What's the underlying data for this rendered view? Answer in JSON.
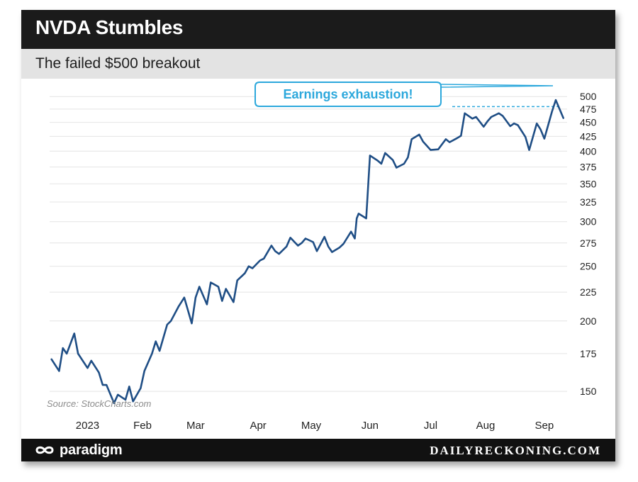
{
  "header": {
    "title": "NVDA Stumbles",
    "subtitle": "The failed $500 breakout"
  },
  "annotation": {
    "label": "Earnings exhaustion!",
    "color": "#2ca8dc"
  },
  "source": "Source: StockCharts.com",
  "footer": {
    "logo_text": "paradigm",
    "site": "DAILYRECKONING.COM"
  },
  "colors": {
    "line": "#1f4e85",
    "grid": "#e4e4e4",
    "accent": "#2ca8dc"
  },
  "chart_data": {
    "type": "line",
    "title": "NVDA Stumbles",
    "subtitle": "The failed $500 breakout",
    "y_scale": "log",
    "ylim": [
      140,
      515
    ],
    "y_ticks": [
      150,
      175,
      200,
      225,
      250,
      275,
      300,
      325,
      350,
      375,
      400,
      425,
      450,
      475,
      500
    ],
    "x_tick_labels": [
      "2023",
      "Feb",
      "Mar",
      "Apr",
      "May",
      "Jun",
      "Jul",
      "Aug",
      "Sep"
    ],
    "x_ticks": [
      "2023-01-03",
      "2023-02-01",
      "2023-03-01",
      "2023-04-03",
      "2023-05-01",
      "2023-06-01",
      "2023-07-03",
      "2023-08-01",
      "2023-09-01"
    ],
    "xlim": [
      "2022-12-14",
      "2023-09-13"
    ],
    "grid": "horizontal",
    "reference_level": 480,
    "series": [
      {
        "x": [
          "2022-12-15",
          "2022-12-19",
          "2022-12-21",
          "2022-12-23",
          "2022-12-27",
          "2022-12-29",
          "2023-01-03",
          "2023-01-05",
          "2023-01-09",
          "2023-01-11",
          "2023-01-13",
          "2023-01-17",
          "2023-01-19",
          "2023-01-23",
          "2023-01-25",
          "2023-01-27",
          "2023-01-31",
          "2023-02-02",
          "2023-02-06",
          "2023-02-08",
          "2023-02-10",
          "2023-02-14",
          "2023-02-16",
          "2023-02-20",
          "2023-02-23",
          "2023-02-27",
          "2023-03-01",
          "2023-03-03",
          "2023-03-07",
          "2023-03-09",
          "2023-03-13",
          "2023-03-15",
          "2023-03-17",
          "2023-03-21",
          "2023-03-23",
          "2023-03-27",
          "2023-03-29",
          "2023-03-31",
          "2023-04-04",
          "2023-04-06",
          "2023-04-10",
          "2023-04-12",
          "2023-04-14",
          "2023-04-18",
          "2023-04-20",
          "2023-04-24",
          "2023-04-26",
          "2023-04-28",
          "2023-05-02",
          "2023-05-04",
          "2023-05-08",
          "2023-05-10",
          "2023-05-12",
          "2023-05-16",
          "2023-05-18",
          "2023-05-22",
          "2023-05-24",
          "2023-05-25",
          "2023-05-26",
          "2023-05-30",
          "2023-06-01",
          "2023-06-05",
          "2023-06-07",
          "2023-06-09",
          "2023-06-13",
          "2023-06-15",
          "2023-06-19",
          "2023-06-21",
          "2023-06-23",
          "2023-06-27",
          "2023-06-29",
          "2023-07-03",
          "2023-07-07",
          "2023-07-11",
          "2023-07-13",
          "2023-07-17",
          "2023-07-19",
          "2023-07-21",
          "2023-07-25",
          "2023-07-27",
          "2023-07-31",
          "2023-08-02",
          "2023-08-04",
          "2023-08-08",
          "2023-08-10",
          "2023-08-14",
          "2023-08-16",
          "2023-08-18",
          "2023-08-22",
          "2023-08-24",
          "2023-08-28",
          "2023-08-30",
          "2023-09-01",
          "2023-09-05",
          "2023-09-07",
          "2023-09-11"
        ],
        "y": [
          171,
          163,
          179,
          175,
          190,
          175,
          165,
          170,
          162,
          154,
          154,
          143,
          148,
          145,
          153,
          144,
          152,
          163,
          175,
          184,
          177,
          197,
          200,
          212,
          220,
          198,
          220,
          230,
          214,
          234,
          230,
          217,
          228,
          216,
          236,
          243,
          250,
          248,
          256,
          258,
          272,
          266,
          263,
          271,
          281,
          272,
          275,
          280,
          276,
          266,
          282,
          271,
          265,
          270,
          274,
          288,
          280,
          304,
          310,
          304,
          393,
          385,
          380,
          397,
          386,
          374,
          380,
          390,
          420,
          428,
          416,
          402,
          403,
          420,
          415,
          422,
          426,
          467,
          457,
          460,
          442,
          452,
          460,
          467,
          462,
          443,
          448,
          445,
          424,
          402,
          448,
          437,
          421,
          470,
          493,
          458
        ]
      }
    ]
  }
}
